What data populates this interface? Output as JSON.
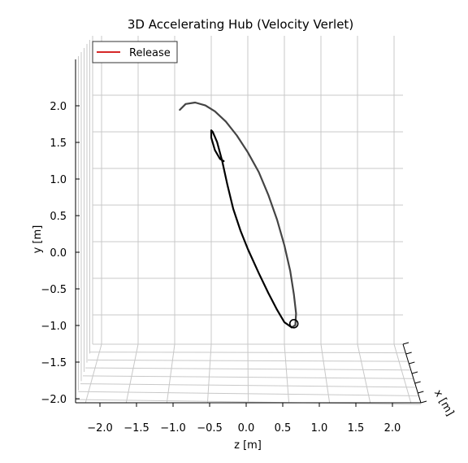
{
  "chart_data": {
    "type": "line",
    "title": "3D Accelerating Hub (Velocity Verlet)",
    "xlabel": "z [m]",
    "ylabel": "y [m]",
    "zlabel": "x [m]",
    "x_ticks": [
      "−2.0",
      "−1.5",
      "−1.0",
      "−0.5",
      "0.0",
      "0.5",
      "1.0",
      "1.5",
      "2.0"
    ],
    "x_tick_values": [
      -2.0,
      -1.5,
      -1.0,
      -0.5,
      0.0,
      0.5,
      1.0,
      1.5,
      2.0
    ],
    "y_ticks": [
      "−2.0",
      "−1.5",
      "−1.0",
      "−0.5",
      "0.0",
      "0.5",
      "1.0",
      "1.5",
      "2.0"
    ],
    "y_tick_values": [
      -2.0,
      -1.5,
      -1.0,
      -0.5,
      0.0,
      0.5,
      1.0,
      1.5,
      2.0
    ],
    "xlim": [
      -2.45,
      2.3
    ],
    "ylim": [
      -2.3,
      2.45
    ],
    "grid": true,
    "legend": {
      "placement": "top-left",
      "entries": [
        {
          "label": "Release",
          "color": "#d62728"
        }
      ]
    },
    "series": [
      {
        "color": "#444444",
        "points": [
          [
            -0.93,
            1.8
          ],
          [
            -0.85,
            1.88
          ],
          [
            -0.72,
            1.9
          ],
          [
            -0.58,
            1.86
          ],
          [
            -0.45,
            1.78
          ],
          [
            -0.3,
            1.64
          ],
          [
            -0.15,
            1.45
          ],
          [
            0.0,
            1.22
          ],
          [
            0.15,
            0.95
          ],
          [
            0.28,
            0.64
          ],
          [
            0.4,
            0.3
          ],
          [
            0.5,
            -0.05
          ],
          [
            0.58,
            -0.4
          ],
          [
            0.63,
            -0.72
          ],
          [
            0.66,
            -0.98
          ],
          [
            0.65,
            -1.14
          ],
          [
            0.6,
            -1.17
          ]
        ]
      },
      {
        "color": "#000000",
        "points": [
          [
            0.6,
            -1.17
          ],
          [
            0.5,
            -1.1
          ],
          [
            0.4,
            -0.93
          ],
          [
            0.28,
            -0.7
          ],
          [
            0.15,
            -0.43
          ],
          [
            0.0,
            -0.1
          ],
          [
            -0.1,
            0.15
          ],
          [
            -0.2,
            0.45
          ],
          [
            -0.28,
            0.78
          ],
          [
            -0.35,
            1.1
          ],
          [
            -0.42,
            1.36
          ],
          [
            -0.48,
            1.5
          ],
          [
            -0.5,
            1.52
          ],
          [
            -0.5,
            1.42
          ],
          [
            -0.45,
            1.25
          ],
          [
            -0.38,
            1.13
          ],
          [
            -0.33,
            1.1
          ]
        ]
      }
    ],
    "markers": [
      {
        "type": "hollow-circle",
        "x": 0.63,
        "y": -1.12,
        "color": "#000000"
      }
    ]
  }
}
